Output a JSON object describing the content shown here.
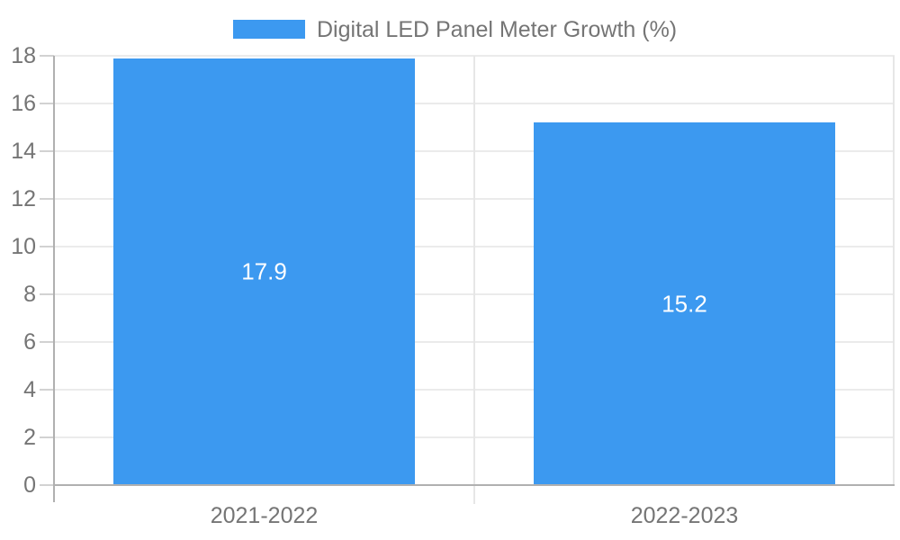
{
  "legend": {
    "label": "Digital LED Panel Meter Growth (%)"
  },
  "colors": {
    "bar": "#3C99F0",
    "axis_text": "#757575",
    "data_label": "#ffffff",
    "grid": "#ebebeb",
    "axis_line": "#b0b0b0",
    "separator": "#e6e6e6",
    "background": "#ffffff"
  },
  "chart_data": {
    "type": "bar",
    "title": "",
    "xlabel": "",
    "ylabel": "",
    "categories": [
      "2021-2022",
      "2022-2023"
    ],
    "values": [
      17.9,
      15.2
    ],
    "data_labels": [
      "17.9",
      "15.2"
    ],
    "series_name": "Digital LED Panel Meter Growth (%)",
    "ylim": [
      0,
      18
    ],
    "ytick_step": 2,
    "yticks": [
      0,
      2,
      4,
      6,
      8,
      10,
      12,
      14,
      16,
      18
    ],
    "grid": true,
    "legend_position": "top",
    "bar_color": "#3C99F0"
  }
}
